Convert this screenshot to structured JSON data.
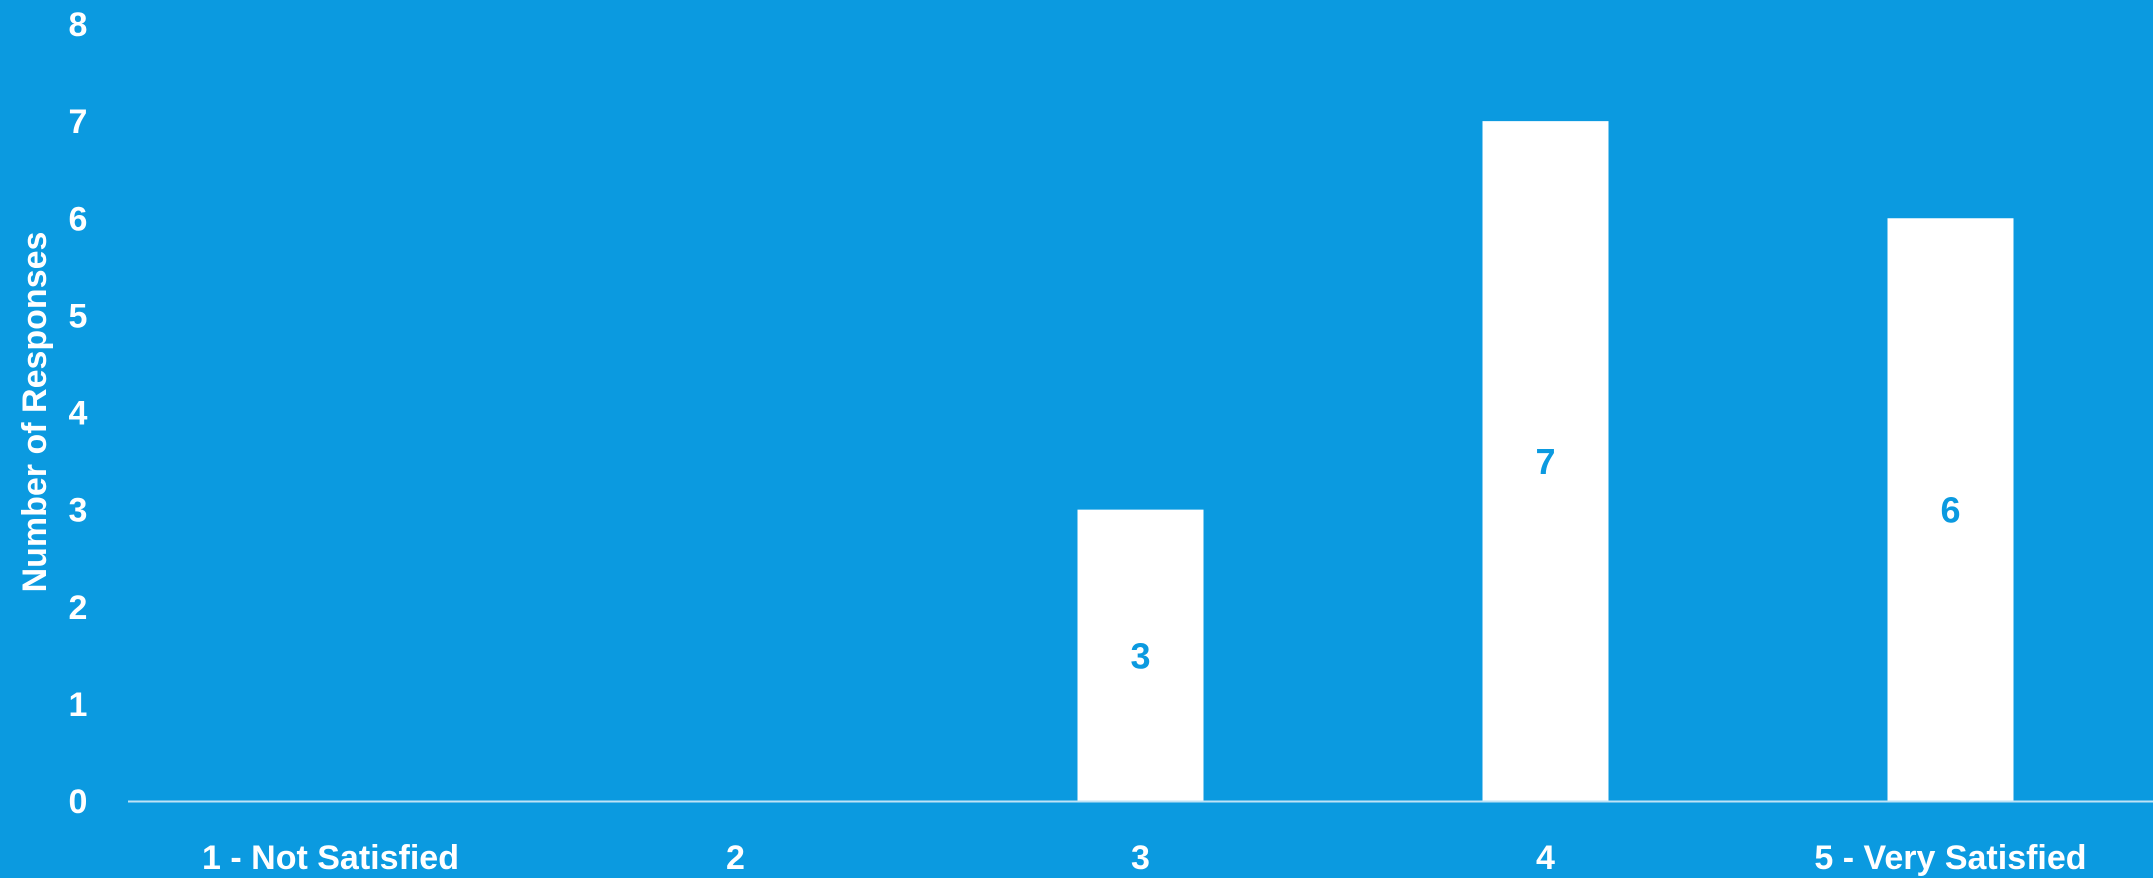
{
  "colors": {
    "background": "#0b9ae0",
    "bar": "#ffffff",
    "text": "#ffffff",
    "data_label": "#0b9ae0",
    "axis_line": "#bfe3f6"
  },
  "chart_data": {
    "type": "bar",
    "title": "",
    "xlabel": "",
    "ylabel": "Number of Responses",
    "categories": [
      "1 - Not Satisfied",
      "2",
      "3",
      "4",
      "5 - Very Satisfied"
    ],
    "values": [
      0,
      0,
      3,
      7,
      6
    ],
    "data_labels": [
      "",
      "",
      "3",
      "7",
      "6"
    ],
    "ylim": [
      0,
      8
    ],
    "yticks": [
      "0",
      "1",
      "2",
      "3",
      "4",
      "5",
      "6",
      "7",
      "8"
    ],
    "grid": false,
    "legend": "none"
  }
}
